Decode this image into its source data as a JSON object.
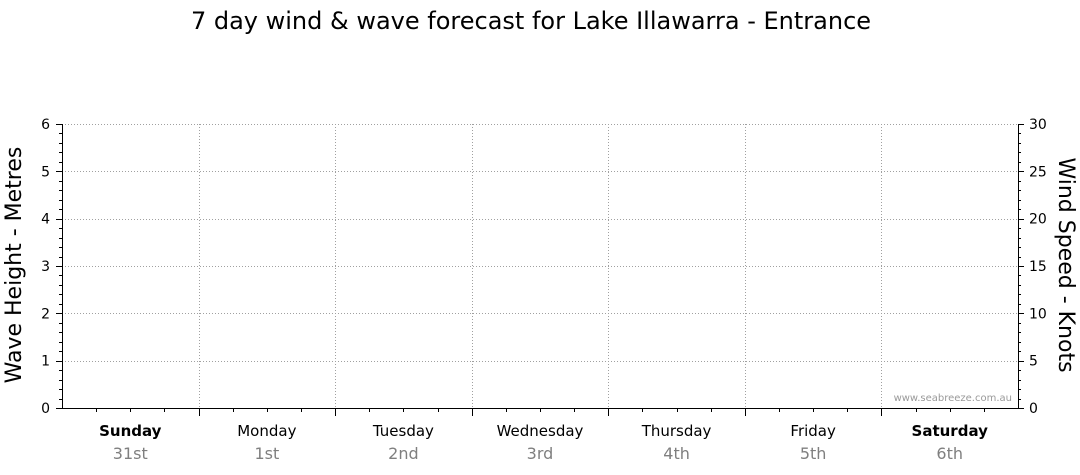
{
  "chart_data": {
    "type": "line",
    "title": "7 day wind & wave forecast for Lake Illawarra - Entrance",
    "ylabel_left": "Wave Height - Metres",
    "ylabel_right": "Wind Speed - Knots",
    "ylim_left": [
      0,
      6
    ],
    "ylim_right": [
      0,
      30
    ],
    "yticks_left": [
      "0",
      "1",
      "2",
      "3",
      "4",
      "5",
      "6"
    ],
    "yticks_right": [
      "0",
      "5",
      "10",
      "15",
      "20",
      "25",
      "30"
    ],
    "grid": true,
    "days": [
      {
        "day": "Sunday",
        "date": "31st",
        "bold": true
      },
      {
        "day": "Monday",
        "date": "1st",
        "bold": false
      },
      {
        "day": "Tuesday",
        "date": "2nd",
        "bold": false
      },
      {
        "day": "Wednesday",
        "date": "3rd",
        "bold": false
      },
      {
        "day": "Thursday",
        "date": "4th",
        "bold": false
      },
      {
        "day": "Friday",
        "date": "5th",
        "bold": false
      },
      {
        "day": "Saturday",
        "date": "6th",
        "bold": true
      }
    ],
    "series": []
  },
  "watermark": "www.seabreeze.com.au",
  "colors": {
    "axis": "#000000",
    "grid": "#a0a0a0",
    "date_text": "#7f7f7f"
  }
}
